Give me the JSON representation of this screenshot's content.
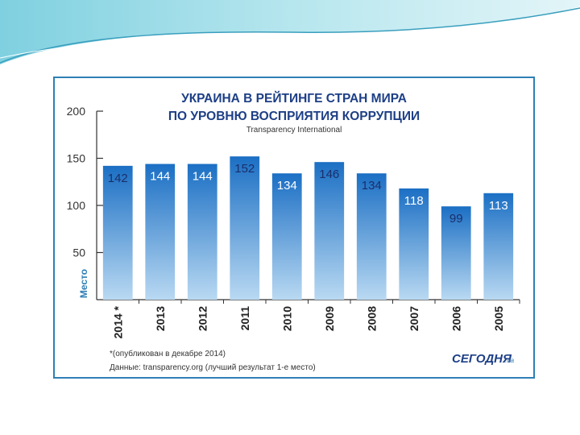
{
  "chart_data": {
    "type": "bar",
    "title_line1": "УКРАИНА В РЕЙТИНГЕ СТРАН МИРА",
    "title_line2": "ПО УРОВНЮ ВОСПРИЯТИЯ КОРРУПЦИИ",
    "subtitle": "Transparency International",
    "ylabel": "Место",
    "ylim": [
      0,
      200
    ],
    "yticks": [
      50,
      100,
      150,
      200
    ],
    "categories": [
      "2014 *",
      "2013",
      "2012",
      "2011",
      "2010",
      "2009",
      "2008",
      "2007",
      "2006",
      "2005"
    ],
    "values": [
      142,
      144,
      144,
      152,
      134,
      146,
      134,
      118,
      99,
      113
    ],
    "label_colors": [
      "#1a2f6b",
      "#ffffff",
      "#ffffff",
      "#1a2f6b",
      "#ffffff",
      "#1a2f6b",
      "#1a2f6b",
      "#ffffff",
      "#1a2f6b",
      "#ffffff"
    ],
    "bar_color_top": "#1b6fc4",
    "bar_color_bottom": "#b9d9f2",
    "footnote": "*(опубликован в декабре 2014)",
    "source": "Данные: transparency.org (лучший результат 1-е место)",
    "logo": "СЕГОДНЯ",
    "logo_suffix": ".ua"
  }
}
